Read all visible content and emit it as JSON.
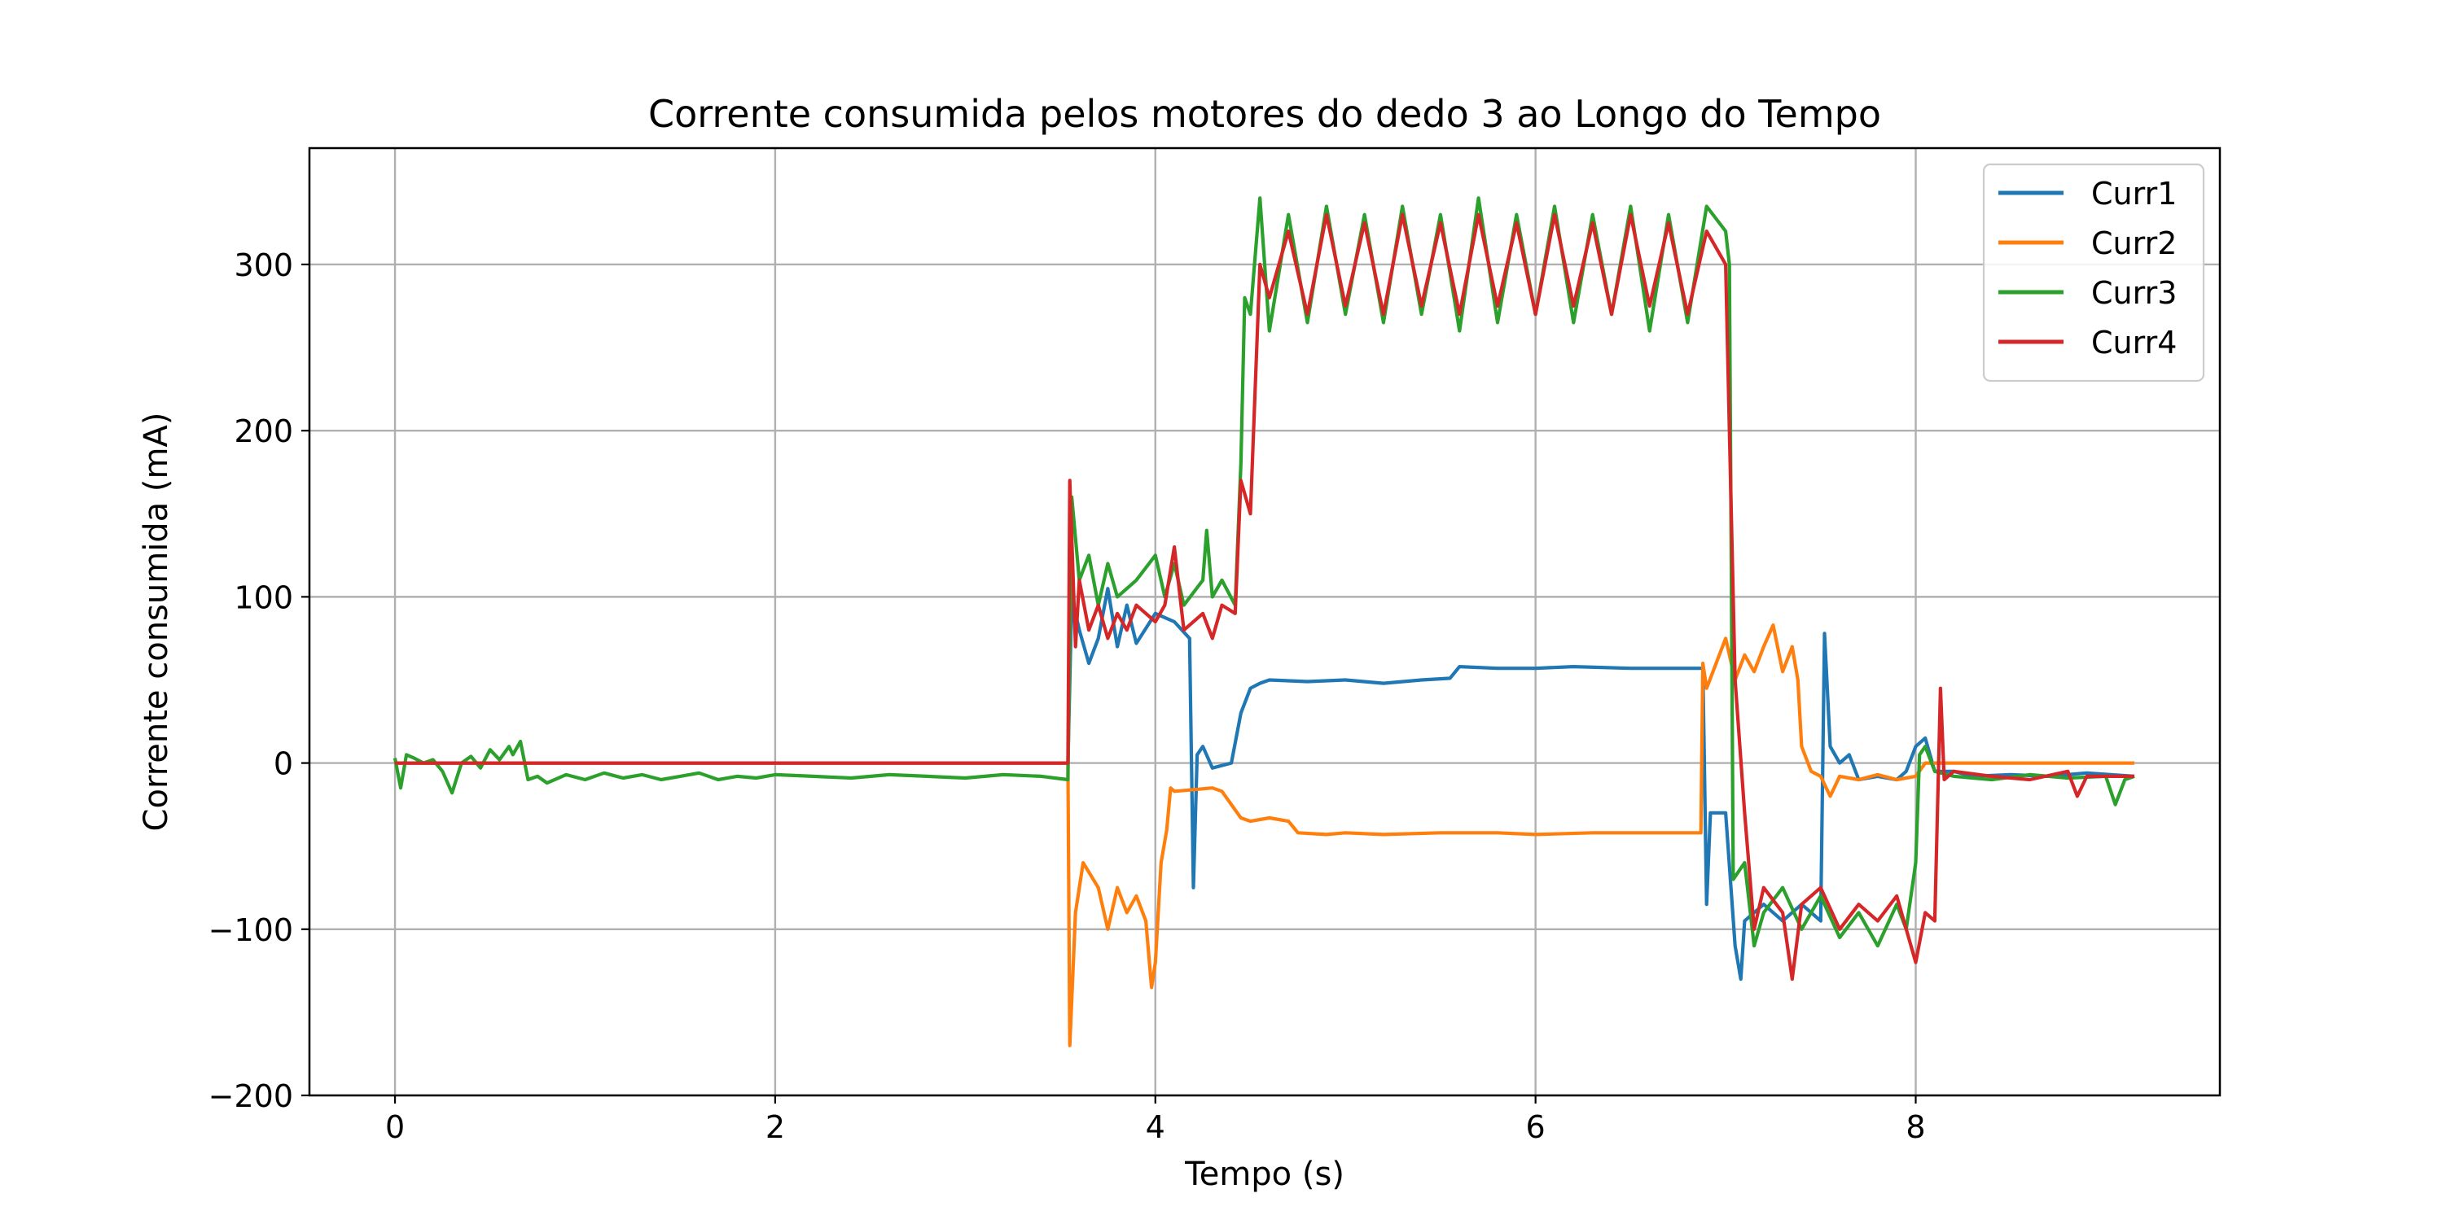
{
  "chart_data": {
    "type": "line",
    "title": "Corrente consumida pelos motores do dedo 3 ao Longo do Tempo",
    "xlabel": "Tempo (s)",
    "ylabel": "Corrente consumida (mA)",
    "xlim": [
      -0.45,
      9.6
    ],
    "ylim": [
      -200,
      370
    ],
    "xticks": [
      0,
      2,
      4,
      6,
      8
    ],
    "yticks": [
      -200,
      -100,
      0,
      100,
      200,
      300
    ],
    "xtick_labels": [
      "0",
      "2",
      "4",
      "6",
      "8"
    ],
    "ytick_labels": [
      "−200",
      "−100",
      "0",
      "100",
      "200",
      "300"
    ],
    "grid": true,
    "legend_position": "top-right",
    "series": [
      {
        "name": "Curr1",
        "color": "#1f77b4",
        "points": [
          [
            0,
            0
          ],
          [
            3.54,
            0
          ],
          [
            3.56,
            100
          ],
          [
            3.6,
            80
          ],
          [
            3.65,
            60
          ],
          [
            3.7,
            75
          ],
          [
            3.75,
            105
          ],
          [
            3.8,
            70
          ],
          [
            3.85,
            95
          ],
          [
            3.9,
            72
          ],
          [
            4.0,
            90
          ],
          [
            4.1,
            85
          ],
          [
            4.18,
            75
          ],
          [
            4.2,
            -75
          ],
          [
            4.22,
            5
          ],
          [
            4.25,
            10
          ],
          [
            4.3,
            -3
          ],
          [
            4.4,
            0
          ],
          [
            4.45,
            30
          ],
          [
            4.5,
            45
          ],
          [
            4.55,
            48
          ],
          [
            4.6,
            50
          ],
          [
            4.8,
            49
          ],
          [
            5.0,
            50
          ],
          [
            5.2,
            48
          ],
          [
            5.4,
            50
          ],
          [
            5.55,
            51
          ],
          [
            5.6,
            58
          ],
          [
            5.8,
            57
          ],
          [
            6.0,
            57
          ],
          [
            6.2,
            58
          ],
          [
            6.5,
            57
          ],
          [
            6.8,
            57
          ],
          [
            6.88,
            57
          ],
          [
            6.9,
            -85
          ],
          [
            6.92,
            -30
          ],
          [
            7.0,
            -30
          ],
          [
            7.05,
            -110
          ],
          [
            7.08,
            -130
          ],
          [
            7.1,
            -95
          ],
          [
            7.2,
            -85
          ],
          [
            7.3,
            -95
          ],
          [
            7.4,
            -85
          ],
          [
            7.5,
            -95
          ],
          [
            7.52,
            78
          ],
          [
            7.55,
            10
          ],
          [
            7.6,
            0
          ],
          [
            7.65,
            5
          ],
          [
            7.7,
            -10
          ],
          [
            7.8,
            -8
          ],
          [
            7.9,
            -10
          ],
          [
            7.95,
            -5
          ],
          [
            8.0,
            10
          ],
          [
            8.05,
            15
          ],
          [
            8.1,
            -5
          ],
          [
            8.2,
            -5
          ],
          [
            8.3,
            -8
          ],
          [
            8.5,
            -7
          ],
          [
            8.7,
            -8
          ],
          [
            8.9,
            -6
          ],
          [
            9.15,
            -8
          ]
        ]
      },
      {
        "name": "Curr2",
        "color": "#ff7f0e",
        "points": [
          [
            0,
            0
          ],
          [
            3.54,
            0
          ],
          [
            3.55,
            -170
          ],
          [
            3.58,
            -90
          ],
          [
            3.62,
            -60
          ],
          [
            3.7,
            -75
          ],
          [
            3.75,
            -100
          ],
          [
            3.8,
            -75
          ],
          [
            3.85,
            -90
          ],
          [
            3.9,
            -80
          ],
          [
            3.95,
            -95
          ],
          [
            3.98,
            -135
          ],
          [
            4.0,
            -120
          ],
          [
            4.03,
            -60
          ],
          [
            4.06,
            -40
          ],
          [
            4.08,
            -15
          ],
          [
            4.1,
            -17
          ],
          [
            4.2,
            -16
          ],
          [
            4.3,
            -15
          ],
          [
            4.35,
            -17
          ],
          [
            4.4,
            -25
          ],
          [
            4.45,
            -33
          ],
          [
            4.5,
            -35
          ],
          [
            4.6,
            -33
          ],
          [
            4.7,
            -35
          ],
          [
            4.75,
            -42
          ],
          [
            4.9,
            -43
          ],
          [
            5.0,
            -42
          ],
          [
            5.2,
            -43
          ],
          [
            5.5,
            -42
          ],
          [
            5.8,
            -42
          ],
          [
            6.0,
            -43
          ],
          [
            6.3,
            -42
          ],
          [
            6.6,
            -42
          ],
          [
            6.87,
            -42
          ],
          [
            6.88,
            60
          ],
          [
            6.9,
            45
          ],
          [
            6.95,
            60
          ],
          [
            7.0,
            75
          ],
          [
            7.05,
            50
          ],
          [
            7.1,
            65
          ],
          [
            7.15,
            55
          ],
          [
            7.2,
            70
          ],
          [
            7.25,
            83
          ],
          [
            7.3,
            55
          ],
          [
            7.35,
            70
          ],
          [
            7.38,
            50
          ],
          [
            7.4,
            10
          ],
          [
            7.45,
            -5
          ],
          [
            7.5,
            -8
          ],
          [
            7.55,
            -20
          ],
          [
            7.6,
            -8
          ],
          [
            7.7,
            -10
          ],
          [
            7.8,
            -7
          ],
          [
            7.9,
            -10
          ],
          [
            8.0,
            -8
          ],
          [
            8.05,
            0
          ],
          [
            8.2,
            0
          ],
          [
            8.5,
            0
          ],
          [
            8.8,
            0
          ],
          [
            9.15,
            0
          ]
        ]
      },
      {
        "name": "Curr3",
        "color": "#2ca02c",
        "points": [
          [
            0,
            3
          ],
          [
            0.03,
            -15
          ],
          [
            0.06,
            5
          ],
          [
            0.1,
            3
          ],
          [
            0.15,
            0
          ],
          [
            0.2,
            2
          ],
          [
            0.25,
            -5
          ],
          [
            0.3,
            -18
          ],
          [
            0.35,
            0
          ],
          [
            0.4,
            4
          ],
          [
            0.45,
            -3
          ],
          [
            0.5,
            8
          ],
          [
            0.55,
            2
          ],
          [
            0.6,
            10
          ],
          [
            0.62,
            5
          ],
          [
            0.66,
            13
          ],
          [
            0.7,
            -10
          ],
          [
            0.75,
            -8
          ],
          [
            0.8,
            -12
          ],
          [
            0.9,
            -7
          ],
          [
            1.0,
            -10
          ],
          [
            1.1,
            -6
          ],
          [
            1.2,
            -9
          ],
          [
            1.3,
            -7
          ],
          [
            1.4,
            -10
          ],
          [
            1.5,
            -8
          ],
          [
            1.6,
            -6
          ],
          [
            1.7,
            -10
          ],
          [
            1.8,
            -8
          ],
          [
            1.9,
            -9
          ],
          [
            2.0,
            -7
          ],
          [
            2.2,
            -8
          ],
          [
            2.4,
            -9
          ],
          [
            2.6,
            -7
          ],
          [
            2.8,
            -8
          ],
          [
            3.0,
            -9
          ],
          [
            3.2,
            -7
          ],
          [
            3.4,
            -8
          ],
          [
            3.54,
            -10
          ],
          [
            3.56,
            160
          ],
          [
            3.6,
            110
          ],
          [
            3.65,
            125
          ],
          [
            3.7,
            95
          ],
          [
            3.75,
            120
          ],
          [
            3.8,
            100
          ],
          [
            3.9,
            110
          ],
          [
            4.0,
            125
          ],
          [
            4.05,
            100
          ],
          [
            4.1,
            120
          ],
          [
            4.15,
            95
          ],
          [
            4.25,
            110
          ],
          [
            4.27,
            140
          ],
          [
            4.3,
            100
          ],
          [
            4.35,
            110
          ],
          [
            4.42,
            95
          ],
          [
            4.45,
            180
          ],
          [
            4.47,
            280
          ],
          [
            4.5,
            270
          ],
          [
            4.55,
            340
          ],
          [
            4.6,
            260
          ],
          [
            4.7,
            330
          ],
          [
            4.8,
            265
          ],
          [
            4.9,
            335
          ],
          [
            5.0,
            270
          ],
          [
            5.1,
            330
          ],
          [
            5.2,
            265
          ],
          [
            5.3,
            335
          ],
          [
            5.4,
            270
          ],
          [
            5.5,
            330
          ],
          [
            5.6,
            260
          ],
          [
            5.7,
            340
          ],
          [
            5.8,
            265
          ],
          [
            5.9,
            330
          ],
          [
            6.0,
            270
          ],
          [
            6.1,
            335
          ],
          [
            6.2,
            265
          ],
          [
            6.3,
            330
          ],
          [
            6.4,
            270
          ],
          [
            6.5,
            335
          ],
          [
            6.6,
            260
          ],
          [
            6.7,
            330
          ],
          [
            6.8,
            265
          ],
          [
            6.9,
            335
          ],
          [
            7.0,
            320
          ],
          [
            7.02,
            300
          ],
          [
            7.04,
            -70
          ],
          [
            7.1,
            -60
          ],
          [
            7.15,
            -110
          ],
          [
            7.2,
            -90
          ],
          [
            7.3,
            -75
          ],
          [
            7.4,
            -100
          ],
          [
            7.5,
            -80
          ],
          [
            7.6,
            -105
          ],
          [
            7.7,
            -90
          ],
          [
            7.8,
            -110
          ],
          [
            7.9,
            -85
          ],
          [
            7.95,
            -100
          ],
          [
            8.0,
            -60
          ],
          [
            8.02,
            5
          ],
          [
            8.05,
            10
          ],
          [
            8.1,
            -5
          ],
          [
            8.2,
            -8
          ],
          [
            8.4,
            -10
          ],
          [
            8.6,
            -7
          ],
          [
            8.8,
            -9
          ],
          [
            9.0,
            -8
          ],
          [
            9.05,
            -25
          ],
          [
            9.1,
            -10
          ],
          [
            9.15,
            -8
          ]
        ]
      },
      {
        "name": "Curr4",
        "color": "#d62728",
        "points": [
          [
            0,
            0
          ],
          [
            3.54,
            0
          ],
          [
            3.55,
            170
          ],
          [
            3.58,
            70
          ],
          [
            3.6,
            110
          ],
          [
            3.65,
            80
          ],
          [
            3.7,
            95
          ],
          [
            3.75,
            75
          ],
          [
            3.8,
            90
          ],
          [
            3.85,
            80
          ],
          [
            3.9,
            95
          ],
          [
            4.0,
            85
          ],
          [
            4.05,
            95
          ],
          [
            4.1,
            130
          ],
          [
            4.15,
            80
          ],
          [
            4.25,
            90
          ],
          [
            4.3,
            75
          ],
          [
            4.35,
            95
          ],
          [
            4.42,
            90
          ],
          [
            4.45,
            170
          ],
          [
            4.5,
            150
          ],
          [
            4.55,
            300
          ],
          [
            4.6,
            280
          ],
          [
            4.7,
            320
          ],
          [
            4.8,
            270
          ],
          [
            4.9,
            330
          ],
          [
            5.0,
            275
          ],
          [
            5.1,
            325
          ],
          [
            5.2,
            270
          ],
          [
            5.3,
            330
          ],
          [
            5.4,
            275
          ],
          [
            5.5,
            325
          ],
          [
            5.6,
            270
          ],
          [
            5.7,
            330
          ],
          [
            5.8,
            275
          ],
          [
            5.9,
            325
          ],
          [
            6.0,
            270
          ],
          [
            6.1,
            330
          ],
          [
            6.2,
            275
          ],
          [
            6.3,
            325
          ],
          [
            6.4,
            270
          ],
          [
            6.5,
            330
          ],
          [
            6.6,
            275
          ],
          [
            6.7,
            325
          ],
          [
            6.8,
            270
          ],
          [
            6.9,
            320
          ],
          [
            7.0,
            300
          ],
          [
            7.02,
            200
          ],
          [
            7.05,
            50
          ],
          [
            7.1,
            -30
          ],
          [
            7.15,
            -100
          ],
          [
            7.2,
            -75
          ],
          [
            7.3,
            -90
          ],
          [
            7.35,
            -130
          ],
          [
            7.4,
            -85
          ],
          [
            7.5,
            -75
          ],
          [
            7.6,
            -100
          ],
          [
            7.7,
            -85
          ],
          [
            7.8,
            -95
          ],
          [
            7.9,
            -80
          ],
          [
            8.0,
            -120
          ],
          [
            8.05,
            -90
          ],
          [
            8.1,
            -95
          ],
          [
            8.13,
            45
          ],
          [
            8.15,
            -10
          ],
          [
            8.2,
            -5
          ],
          [
            8.4,
            -8
          ],
          [
            8.6,
            -10
          ],
          [
            8.8,
            -5
          ],
          [
            8.85,
            -20
          ],
          [
            8.9,
            -8
          ],
          [
            9.15,
            -8
          ]
        ]
      }
    ]
  }
}
